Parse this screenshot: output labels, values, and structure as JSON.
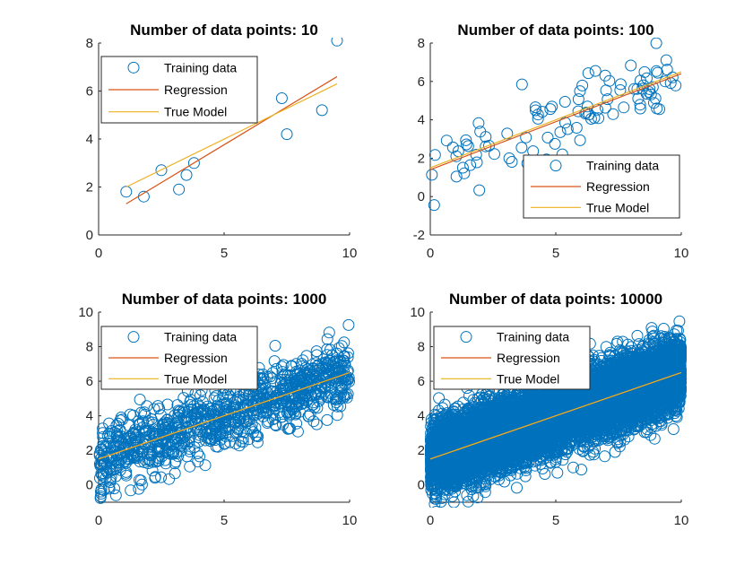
{
  "figure": {
    "background": "#ffffff"
  },
  "colors": {
    "training": "#0072BD",
    "regression": "#D95319",
    "true_model": "#EDB120",
    "axis": "#262626"
  },
  "legend_labels": {
    "training": "Training data",
    "regression": "Regression",
    "true_model": "True Model"
  },
  "chart_data": [
    {
      "type": "scatter",
      "title": "Number of data points: 10",
      "xlim": [
        0,
        10
      ],
      "ylim": [
        0,
        8
      ],
      "xticks": [
        0,
        5,
        10
      ],
      "yticks": [
        0,
        2,
        4,
        6,
        8
      ],
      "legend_position": "top-left",
      "series": [
        {
          "name": "Training data",
          "type": "scatter",
          "x": [
            1.1,
            1.8,
            2.5,
            3.2,
            3.5,
            3.8,
            7.3,
            7.5,
            8.9,
            9.5
          ],
          "y": [
            1.8,
            1.6,
            2.7,
            1.9,
            2.5,
            3.0,
            5.7,
            4.2,
            5.2,
            8.1
          ]
        },
        {
          "name": "Regression",
          "type": "line",
          "x": [
            1.1,
            9.5
          ],
          "y": [
            1.3,
            6.6
          ]
        },
        {
          "name": "True Model",
          "type": "line",
          "x": [
            1.1,
            9.5
          ],
          "y": [
            2.0,
            6.3
          ]
        }
      ]
    },
    {
      "type": "scatter",
      "title": "Number of data points: 100",
      "xlim": [
        0,
        10
      ],
      "ylim": [
        -2,
        8
      ],
      "xticks": [
        0,
        5,
        10
      ],
      "yticks": [
        -2,
        0,
        2,
        4,
        6,
        8
      ],
      "legend_position": "bottom-right",
      "series": [
        {
          "name": "Training data",
          "type": "scatter",
          "n": 100,
          "x_range": [
            0,
            10
          ],
          "noise_sd": 0.9
        },
        {
          "name": "Regression",
          "type": "line",
          "x": [
            0,
            10
          ],
          "y": [
            1.4,
            6.4
          ]
        },
        {
          "name": "True Model",
          "type": "line",
          "x": [
            0,
            10
          ],
          "y": [
            1.5,
            6.5
          ]
        }
      ]
    },
    {
      "type": "scatter",
      "title": "Number of data points: 1000",
      "xlim": [
        0,
        10
      ],
      "ylim": [
        -1,
        10
      ],
      "xticks": [
        0,
        5,
        10
      ],
      "yticks": [
        0,
        2,
        4,
        6,
        8,
        10
      ],
      "legend_position": "top-left",
      "series": [
        {
          "name": "Training data",
          "type": "scatter",
          "n": 1000,
          "x_range": [
            0,
            10
          ],
          "noise_sd": 1.0
        },
        {
          "name": "Regression",
          "type": "line",
          "x": [
            0,
            10
          ],
          "y": [
            1.5,
            6.5
          ]
        },
        {
          "name": "True Model",
          "type": "line",
          "x": [
            0,
            10
          ],
          "y": [
            1.5,
            6.5
          ]
        }
      ]
    },
    {
      "type": "scatter",
      "title": "Number of data points: 10000",
      "xlim": [
        0,
        10
      ],
      "ylim": [
        -1,
        10
      ],
      "xticks": [
        0,
        5,
        10
      ],
      "yticks": [
        0,
        2,
        4,
        6,
        8,
        10
      ],
      "legend_position": "top-left",
      "series": [
        {
          "name": "Training data",
          "type": "scatter",
          "n": 10000,
          "x_range": [
            0,
            10
          ],
          "noise_sd": 1.0
        },
        {
          "name": "Regression",
          "type": "line",
          "x": [
            0,
            10
          ],
          "y": [
            1.5,
            6.5
          ]
        },
        {
          "name": "True Model",
          "type": "line",
          "x": [
            0,
            10
          ],
          "y": [
            1.5,
            6.5
          ]
        }
      ]
    }
  ]
}
